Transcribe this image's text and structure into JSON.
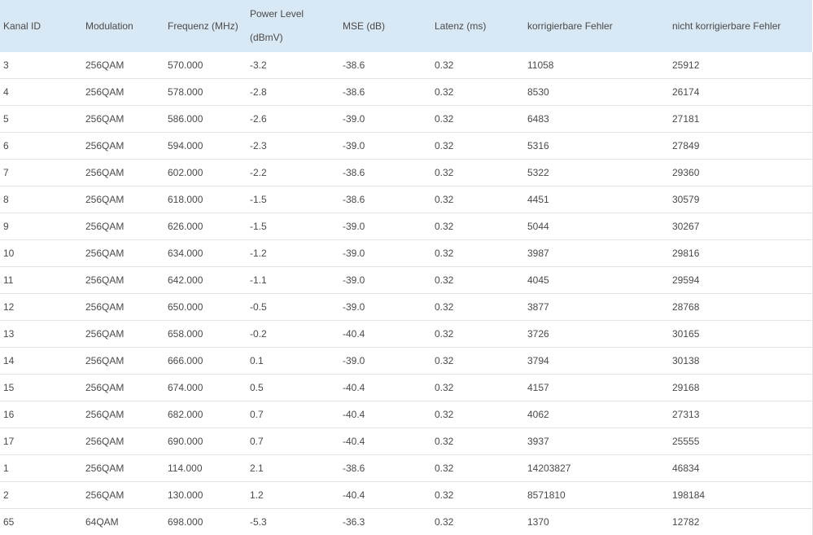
{
  "table": {
    "headers": [
      "Kanal ID",
      "Modulation",
      "Frequenz (MHz)",
      "Power Level (dBmV)",
      "MSE (dB)",
      "Latenz (ms)",
      "korrigierbare Fehler",
      "nicht korrigierbare Fehler"
    ],
    "rows": [
      [
        "3",
        "256QAM",
        "570.000",
        "-3.2",
        "-38.6",
        "0.32",
        "11058",
        "25912"
      ],
      [
        "4",
        "256QAM",
        "578.000",
        "-2.8",
        "-38.6",
        "0.32",
        "8530",
        "26174"
      ],
      [
        "5",
        "256QAM",
        "586.000",
        "-2.6",
        "-39.0",
        "0.32",
        "6483",
        "27181"
      ],
      [
        "6",
        "256QAM",
        "594.000",
        "-2.3",
        "-39.0",
        "0.32",
        "5316",
        "27849"
      ],
      [
        "7",
        "256QAM",
        "602.000",
        "-2.2",
        "-38.6",
        "0.32",
        "5322",
        "29360"
      ],
      [
        "8",
        "256QAM",
        "618.000",
        "-1.5",
        "-38.6",
        "0.32",
        "4451",
        "30579"
      ],
      [
        "9",
        "256QAM",
        "626.000",
        "-1.5",
        "-39.0",
        "0.32",
        "5044",
        "30267"
      ],
      [
        "10",
        "256QAM",
        "634.000",
        "-1.2",
        "-39.0",
        "0.32",
        "3987",
        "29816"
      ],
      [
        "11",
        "256QAM",
        "642.000",
        "-1.1",
        "-39.0",
        "0.32",
        "4045",
        "29594"
      ],
      [
        "12",
        "256QAM",
        "650.000",
        "-0.5",
        "-39.0",
        "0.32",
        "3877",
        "28768"
      ],
      [
        "13",
        "256QAM",
        "658.000",
        "-0.2",
        "-40.4",
        "0.32",
        "3726",
        "30165"
      ],
      [
        "14",
        "256QAM",
        "666.000",
        "0.1",
        "-39.0",
        "0.32",
        "3794",
        "30138"
      ],
      [
        "15",
        "256QAM",
        "674.000",
        "0.5",
        "-40.4",
        "0.32",
        "4157",
        "29168"
      ],
      [
        "16",
        "256QAM",
        "682.000",
        "0.7",
        "-40.4",
        "0.32",
        "4062",
        "27313"
      ],
      [
        "17",
        "256QAM",
        "690.000",
        "0.7",
        "-40.4",
        "0.32",
        "3937",
        "25555"
      ],
      [
        "1",
        "256QAM",
        "114.000",
        "2.1",
        "-38.6",
        "0.32",
        "14203827",
        "46834"
      ],
      [
        "2",
        "256QAM",
        "130.000",
        "1.2",
        "-40.4",
        "0.32",
        "8571810",
        "198184"
      ],
      [
        "65",
        "64QAM",
        "698.000",
        "-5.3",
        "-36.3",
        "0.32",
        "1370",
        "12782"
      ]
    ]
  }
}
